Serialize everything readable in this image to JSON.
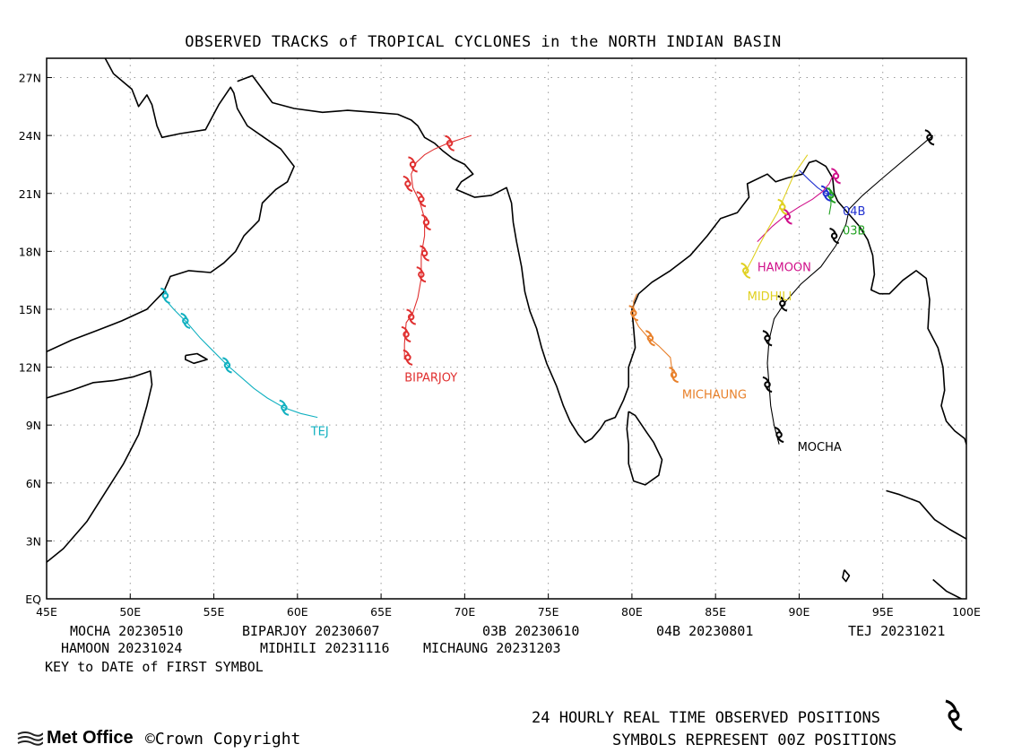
{
  "title": "OBSERVED TRACKS of TROPICAL CYCLONES in the NORTH INDIAN BASIN",
  "axes": {
    "x_ticks": [
      {
        "value": 45,
        "label": "45E"
      },
      {
        "value": 50,
        "label": "50E"
      },
      {
        "value": 55,
        "label": "55E"
      },
      {
        "value": 60,
        "label": "60E"
      },
      {
        "value": 65,
        "label": "65E"
      },
      {
        "value": 70,
        "label": "70E"
      },
      {
        "value": 75,
        "label": "75E"
      },
      {
        "value": 80,
        "label": "80E"
      },
      {
        "value": 85,
        "label": "85E"
      },
      {
        "value": 90,
        "label": "90E"
      },
      {
        "value": 95,
        "label": "95E"
      },
      {
        "value": 100,
        "label": "100E"
      }
    ],
    "y_ticks": [
      {
        "value": 0,
        "label": "EQ"
      },
      {
        "value": 3,
        "label": "3N"
      },
      {
        "value": 6,
        "label": "6N"
      },
      {
        "value": 9,
        "label": "9N"
      },
      {
        "value": 12,
        "label": "12N"
      },
      {
        "value": 15,
        "label": "15N"
      },
      {
        "value": 18,
        "label": "18N"
      },
      {
        "value": 21,
        "label": "21N"
      },
      {
        "value": 24,
        "label": "24N"
      },
      {
        "value": 27,
        "label": "27N"
      }
    ],
    "xlim": [
      45,
      100
    ],
    "ylim": [
      0,
      28
    ],
    "grid": true
  },
  "cyclones": [
    {
      "name": "MOCHA",
      "label": "MOCHA",
      "color": "#000000",
      "label_pos": [
        89.9,
        7.9
      ],
      "track": [
        [
          88.8,
          8.0
        ],
        [
          88.5,
          9.0
        ],
        [
          88.3,
          10.0
        ],
        [
          88.2,
          11.1
        ],
        [
          88.1,
          12.2
        ],
        [
          88.2,
          13.4
        ],
        [
          88.5,
          14.5
        ],
        [
          89.2,
          15.4
        ],
        [
          90.1,
          16.3
        ],
        [
          91.3,
          17.2
        ],
        [
          92.2,
          18.3
        ],
        [
          92.8,
          19.4
        ],
        [
          93.0,
          20.2
        ],
        [
          93.8,
          20.9
        ],
        [
          95.0,
          21.8
        ],
        [
          96.5,
          22.9
        ],
        [
          98.0,
          24.0
        ]
      ],
      "symbols": [
        [
          88.8,
          8.5
        ],
        [
          88.1,
          11.1
        ],
        [
          88.1,
          13.5
        ],
        [
          89.0,
          15.3
        ],
        [
          92.1,
          18.8
        ],
        [
          97.8,
          23.9
        ]
      ]
    },
    {
      "name": "BIPARJOY",
      "label": "BIPARJOY",
      "color": "#e03030",
      "label_pos": [
        66.4,
        11.5
      ],
      "track": [
        [
          66.4,
          12.4
        ],
        [
          66.4,
          13.2
        ],
        [
          66.5,
          14.3
        ],
        [
          66.9,
          14.8
        ],
        [
          67.2,
          15.6
        ],
        [
          67.4,
          16.6
        ],
        [
          67.4,
          17.8
        ],
        [
          67.6,
          18.8
        ],
        [
          67.6,
          19.7
        ],
        [
          67.3,
          20.6
        ],
        [
          66.9,
          21.3
        ],
        [
          66.8,
          22.0
        ],
        [
          67.1,
          22.6
        ],
        [
          67.6,
          23.0
        ],
        [
          68.2,
          23.3
        ],
        [
          69.0,
          23.6
        ],
        [
          69.7,
          23.8
        ],
        [
          70.4,
          24.0
        ]
      ],
      "symbols": [
        [
          66.6,
          12.5
        ],
        [
          66.5,
          13.7
        ],
        [
          66.8,
          14.6
        ],
        [
          67.4,
          16.8
        ],
        [
          67.6,
          17.9
        ],
        [
          67.7,
          19.5
        ],
        [
          67.4,
          20.7
        ],
        [
          66.6,
          21.5
        ],
        [
          66.9,
          22.5
        ],
        [
          69.1,
          23.6
        ]
      ]
    },
    {
      "name": "03B",
      "label": "03B",
      "color": "#20a020",
      "label_pos": [
        92.6,
        19.1
      ],
      "track": [
        [
          91.8,
          19.9
        ],
        [
          91.9,
          20.4
        ],
        [
          91.9,
          20.9
        ],
        [
          91.8,
          21.3
        ]
      ],
      "symbols": [
        [
          91.9,
          20.9
        ]
      ]
    },
    {
      "name": "04B",
      "label": "04B",
      "color": "#2030d0",
      "label_pos": [
        92.6,
        20.1
      ],
      "track": [
        [
          90.0,
          22.2
        ],
        [
          90.6,
          21.7
        ],
        [
          91.1,
          21.3
        ],
        [
          91.6,
          21.0
        ],
        [
          92.0,
          20.9
        ]
      ],
      "symbols": [
        [
          91.6,
          21.0
        ]
      ]
    },
    {
      "name": "TEJ",
      "label": "TEJ",
      "color": "#10b0c0",
      "label_pos": [
        60.8,
        8.7
      ],
      "track": [
        [
          61.2,
          9.4
        ],
        [
          60.2,
          9.6
        ],
        [
          59.2,
          9.9
        ],
        [
          58.2,
          10.4
        ],
        [
          57.4,
          10.9
        ],
        [
          56.6,
          11.5
        ],
        [
          55.8,
          12.1
        ],
        [
          55.0,
          12.8
        ],
        [
          54.2,
          13.5
        ],
        [
          53.4,
          14.3
        ],
        [
          52.6,
          15.0
        ],
        [
          51.9,
          15.7
        ]
      ],
      "symbols": [
        [
          59.2,
          9.9
        ],
        [
          55.8,
          12.1
        ],
        [
          53.3,
          14.4
        ],
        [
          52.1,
          15.7
        ]
      ]
    },
    {
      "name": "HAMOON",
      "label": "HAMOON",
      "color": "#d0108a",
      "label_pos": [
        87.5,
        17.2
      ],
      "track": [
        [
          87.5,
          18.5
        ],
        [
          88.4,
          19.3
        ],
        [
          89.1,
          19.8
        ],
        [
          90.0,
          20.3
        ],
        [
          90.8,
          20.7
        ],
        [
          91.4,
          21.1
        ],
        [
          91.8,
          21.5
        ],
        [
          92.0,
          21.9
        ]
      ],
      "symbols": [
        [
          89.3,
          19.8
        ],
        [
          92.2,
          21.9
        ]
      ]
    },
    {
      "name": "MIDHILI",
      "label": "MIDHILI",
      "color": "#e0d020",
      "label_pos": [
        86.9,
        15.7
      ],
      "track": [
        [
          86.7,
          16.8
        ],
        [
          87.2,
          17.6
        ],
        [
          87.6,
          18.3
        ],
        [
          88.1,
          19.1
        ],
        [
          88.7,
          20.0
        ],
        [
          89.2,
          21.0
        ],
        [
          89.7,
          22.0
        ],
        [
          90.5,
          23.0
        ]
      ],
      "symbols": [
        [
          86.8,
          17.0
        ],
        [
          89.0,
          20.3
        ]
      ]
    },
    {
      "name": "MICHAUNG",
      "label": "MICHAUNG",
      "color": "#e8802a",
      "label_pos": [
        83.0,
        10.6
      ],
      "track": [
        [
          82.5,
          11.3
        ],
        [
          82.4,
          11.8
        ],
        [
          82.3,
          12.5
        ],
        [
          81.6,
          13.1
        ],
        [
          80.9,
          13.6
        ],
        [
          80.4,
          14.1
        ],
        [
          80.1,
          14.6
        ],
        [
          80.1,
          15.4
        ],
        [
          80.3,
          15.8
        ]
      ],
      "symbols": [
        [
          82.5,
          11.6
        ],
        [
          81.1,
          13.5
        ],
        [
          80.1,
          14.8
        ]
      ]
    }
  ],
  "key": {
    "rows": [
      [
        {
          "name": "MOCHA",
          "date": "MOCHA 20230510"
        },
        {
          "name": "BIPARJOY",
          "date": "BIPARJOY 20230607"
        },
        {
          "name": "03B",
          "date": "03B 20230610"
        },
        {
          "name": "04B",
          "date": "04B 20230801"
        },
        {
          "name": "TEJ",
          "date": "TEJ 20231021"
        }
      ],
      [
        {
          "name": "HAMOON",
          "date": "HAMOON 20231024"
        },
        {
          "name": "MIDHILI",
          "date": "MIDHILI 20231116"
        },
        {
          "name": "MICHAUNG",
          "date": "MICHAUNG 20231203"
        }
      ]
    ],
    "caption": "KEY to DATE of FIRST SYMBOL"
  },
  "footer": {
    "positions_note": "24 HOURLY REAL TIME OBSERVED POSITIONS",
    "symbols_note": "SYMBOLS REPRESENT 00Z POSITIONS",
    "logo_text": "Met Office",
    "copyright": "©Crown Copyright"
  },
  "coastlines": [
    [
      [
        45.0,
        12.8
      ],
      [
        46.5,
        13.4
      ],
      [
        48.0,
        13.9
      ],
      [
        49.5,
        14.4
      ],
      [
        51.0,
        15.0
      ],
      [
        52.0,
        15.9
      ],
      [
        52.4,
        16.7
      ],
      [
        53.5,
        17.0
      ],
      [
        54.8,
        16.9
      ],
      [
        55.6,
        17.4
      ],
      [
        56.3,
        18.0
      ],
      [
        56.8,
        18.8
      ],
      [
        57.7,
        19.6
      ],
      [
        57.9,
        20.5
      ],
      [
        58.7,
        21.2
      ],
      [
        59.4,
        21.6
      ],
      [
        59.8,
        22.4
      ],
      [
        59.0,
        23.3
      ],
      [
        58.0,
        23.9
      ],
      [
        57.0,
        24.5
      ],
      [
        56.4,
        25.4
      ],
      [
        56.2,
        26.2
      ],
      [
        56.0,
        26.5
      ],
      [
        55.3,
        25.6
      ],
      [
        54.5,
        24.3
      ],
      [
        53.0,
        24.1
      ],
      [
        51.9,
        23.9
      ],
      [
        51.6,
        24.5
      ],
      [
        51.3,
        25.6
      ],
      [
        51.0,
        26.1
      ],
      [
        50.5,
        25.5
      ],
      [
        50.1,
        26.4
      ],
      [
        49.0,
        27.2
      ],
      [
        48.5,
        28.0
      ]
    ],
    [
      [
        56.4,
        26.8
      ],
      [
        57.3,
        27.1
      ],
      [
        58.5,
        25.7
      ],
      [
        59.8,
        25.4
      ],
      [
        61.5,
        25.2
      ],
      [
        63.0,
        25.3
      ],
      [
        64.6,
        25.2
      ],
      [
        66.0,
        25.1
      ],
      [
        66.8,
        24.8
      ],
      [
        67.2,
        24.5
      ],
      [
        67.6,
        23.9
      ],
      [
        68.2,
        23.6
      ],
      [
        68.7,
        23.2
      ],
      [
        69.3,
        22.8
      ],
      [
        70.0,
        22.5
      ],
      [
        70.5,
        22.0
      ],
      [
        69.8,
        21.6
      ],
      [
        69.5,
        21.2
      ],
      [
        70.6,
        20.8
      ],
      [
        71.6,
        20.9
      ],
      [
        72.5,
        21.3
      ],
      [
        72.8,
        20.5
      ],
      [
        72.9,
        19.5
      ],
      [
        73.1,
        18.5
      ],
      [
        73.4,
        17.2
      ],
      [
        73.6,
        15.9
      ],
      [
        73.9,
        14.9
      ],
      [
        74.3,
        14.0
      ],
      [
        74.6,
        13.0
      ],
      [
        74.9,
        12.2
      ],
      [
        75.5,
        11.0
      ],
      [
        75.9,
        10.0
      ],
      [
        76.3,
        9.2
      ],
      [
        76.8,
        8.5
      ],
      [
        77.2,
        8.1
      ],
      [
        77.6,
        8.3
      ],
      [
        78.1,
        8.8
      ],
      [
        78.4,
        9.2
      ],
      [
        79.0,
        9.4
      ],
      [
        79.5,
        10.3
      ],
      [
        79.8,
        11.0
      ],
      [
        79.8,
        12.0
      ],
      [
        80.2,
        13.0
      ],
      [
        80.1,
        14.0
      ],
      [
        80.0,
        15.0
      ],
      [
        80.4,
        15.8
      ],
      [
        81.2,
        16.4
      ],
      [
        82.3,
        17.0
      ],
      [
        83.5,
        17.8
      ],
      [
        84.5,
        18.8
      ],
      [
        85.3,
        19.7
      ],
      [
        86.3,
        20.0
      ],
      [
        87.0,
        20.8
      ],
      [
        86.9,
        21.5
      ],
      [
        88.1,
        22.0
      ],
      [
        88.6,
        21.6
      ],
      [
        89.3,
        21.8
      ],
      [
        90.2,
        22.0
      ],
      [
        90.6,
        22.6
      ],
      [
        91.0,
        22.7
      ],
      [
        91.6,
        22.4
      ],
      [
        92.0,
        21.8
      ],
      [
        92.1,
        21.0
      ],
      [
        92.3,
        20.6
      ],
      [
        93.0,
        19.9
      ],
      [
        93.6,
        19.3
      ],
      [
        94.1,
        18.6
      ],
      [
        94.4,
        17.8
      ],
      [
        94.5,
        16.8
      ],
      [
        94.3,
        16.0
      ],
      [
        94.8,
        15.8
      ],
      [
        95.4,
        15.8
      ],
      [
        96.2,
        16.5
      ],
      [
        97.0,
        17.0
      ],
      [
        97.6,
        16.6
      ],
      [
        97.8,
        15.5
      ],
      [
        97.7,
        14.0
      ],
      [
        98.3,
        13.0
      ],
      [
        98.6,
        12.0
      ],
      [
        98.7,
        10.8
      ],
      [
        98.5,
        10.0
      ],
      [
        98.8,
        9.2
      ],
      [
        99.3,
        8.7
      ],
      [
        99.9,
        8.3
      ],
      [
        100.0,
        8.0
      ]
    ],
    [
      [
        79.8,
        9.7
      ],
      [
        80.2,
        9.5
      ],
      [
        80.9,
        8.6
      ],
      [
        81.3,
        8.1
      ],
      [
        81.8,
        7.2
      ],
      [
        81.6,
        6.4
      ],
      [
        80.8,
        5.9
      ],
      [
        80.1,
        6.1
      ],
      [
        79.8,
        7.0
      ],
      [
        79.8,
        8.0
      ],
      [
        79.7,
        8.8
      ],
      [
        79.8,
        9.7
      ]
    ],
    [
      [
        45.0,
        10.4
      ],
      [
        46.5,
        10.8
      ],
      [
        47.8,
        11.2
      ],
      [
        49.0,
        11.3
      ],
      [
        50.2,
        11.5
      ],
      [
        51.2,
        11.8
      ],
      [
        51.3,
        11.1
      ],
      [
        51.0,
        10.0
      ],
      [
        50.5,
        8.5
      ],
      [
        49.6,
        7.0
      ],
      [
        48.5,
        5.5
      ],
      [
        47.4,
        4.0
      ],
      [
        46.0,
        2.6
      ],
      [
        45.0,
        1.9
      ]
    ],
    [
      [
        53.3,
        12.6
      ],
      [
        54.0,
        12.7
      ],
      [
        54.6,
        12.4
      ],
      [
        53.8,
        12.2
      ],
      [
        53.3,
        12.4
      ],
      [
        53.3,
        12.6
      ]
    ],
    [
      [
        95.2,
        5.6
      ],
      [
        96.0,
        5.4
      ],
      [
        97.2,
        5.0
      ],
      [
        98.1,
        4.1
      ],
      [
        99.0,
        3.6
      ],
      [
        100.0,
        3.1
      ]
    ],
    [
      [
        99.7,
        0.0
      ],
      [
        98.8,
        0.4
      ],
      [
        98.0,
        1.0
      ]
    ],
    [
      [
        92.7,
        1.5
      ],
      [
        93.0,
        1.2
      ],
      [
        92.8,
        0.9
      ],
      [
        92.6,
        1.1
      ],
      [
        92.7,
        1.5
      ]
    ]
  ],
  "colors": {
    "grid": "#9a9a9a",
    "coast": "#000000",
    "frame": "#000000"
  }
}
